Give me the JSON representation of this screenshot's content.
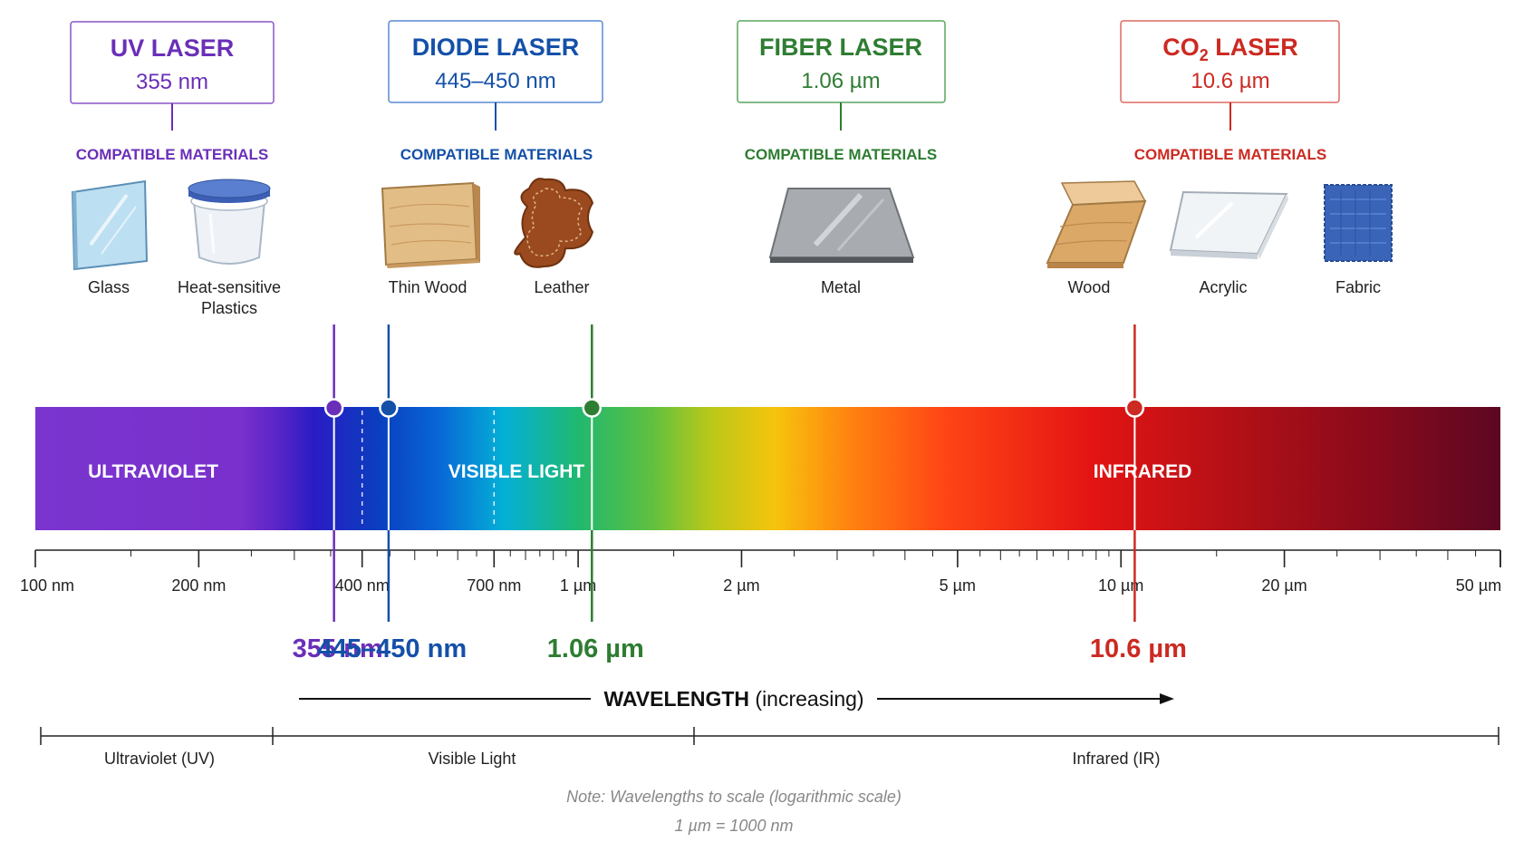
{
  "lasers": [
    {
      "id": "uv",
      "name": "UV LASER",
      "wavelength": "355 nm",
      "marker_label": "355 nm",
      "value_nm": 355,
      "color": "#6a2fb8",
      "materials_heading": "COMPATIBLE MATERIALS",
      "materials": [
        {
          "label": "Glass",
          "icon": "glass-pane-icon"
        },
        {
          "label": "Heat-sensitive Plastics",
          "icon": "plastic-container-icon"
        }
      ]
    },
    {
      "id": "diode",
      "name": "DIODE LASER",
      "wavelength": "445–450 nm",
      "marker_label": "445–450 nm",
      "value_nm": 447.5,
      "color": "#1450a8",
      "materials_heading": "COMPATIBLE MATERIALS",
      "materials": [
        {
          "label": "Thin Wood",
          "icon": "thin-wood-icon"
        },
        {
          "label": "Leather",
          "icon": "leather-hide-icon"
        }
      ]
    },
    {
      "id": "fiber",
      "name": "FIBER LASER",
      "wavelength": "1.06 µm",
      "marker_label": "1.06 µm",
      "value_nm": 1060,
      "color": "#2e7d32",
      "materials_heading": "COMPATIBLE MATERIALS",
      "materials": [
        {
          "label": "Metal",
          "icon": "metal-sheet-icon"
        }
      ]
    },
    {
      "id": "co2",
      "name_prefix": "CO",
      "name_sub": "2",
      "name_suffix": " LASER",
      "wavelength": "10.6 µm",
      "marker_label": "10.6 µm",
      "value_nm": 10600,
      "color": "#cc2a22",
      "materials_heading": "COMPATIBLE MATERIALS",
      "materials": [
        {
          "label": "Wood",
          "icon": "wood-block-icon"
        },
        {
          "label": "Acrylic",
          "icon": "acrylic-sheet-icon"
        },
        {
          "label": "Fabric",
          "icon": "fabric-swatch-icon"
        }
      ]
    }
  ],
  "spectrum": {
    "band_labels": [
      "ULTRAVIOLET",
      "VISIBLE LIGHT",
      "INFRARED"
    ],
    "boundaries_nm": [
      400,
      700
    ]
  },
  "axis": {
    "min_nm": 100,
    "max_nm": 50000,
    "tick_labels": [
      {
        "label": "100 nm",
        "value_nm": 100
      },
      {
        "label": "200 nm",
        "value_nm": 200
      },
      {
        "label": "400 nm",
        "value_nm": 400
      },
      {
        "label": "700 nm",
        "value_nm": 700
      },
      {
        "label": "1 µm",
        "value_nm": 1000
      },
      {
        "label": "2 µm",
        "value_nm": 2000
      },
      {
        "label": "5 µm",
        "value_nm": 5000
      },
      {
        "label": "10 µm",
        "value_nm": 10000
      },
      {
        "label": "20 µm",
        "value_nm": 20000
      },
      {
        "label": "50 µm",
        "value_nm": 50000
      }
    ]
  },
  "wavelength_arrow": {
    "title_bold": "WAVELENGTH",
    "title_rest": " (increasing)"
  },
  "regions": [
    {
      "label": "Ultraviolet (UV)"
    },
    {
      "label": "Visible Light"
    },
    {
      "label": "Infrared (IR)"
    }
  ],
  "notes": [
    "Note: Wavelengths to scale (logarithmic scale)",
    "1 µm = 1000 nm"
  ]
}
